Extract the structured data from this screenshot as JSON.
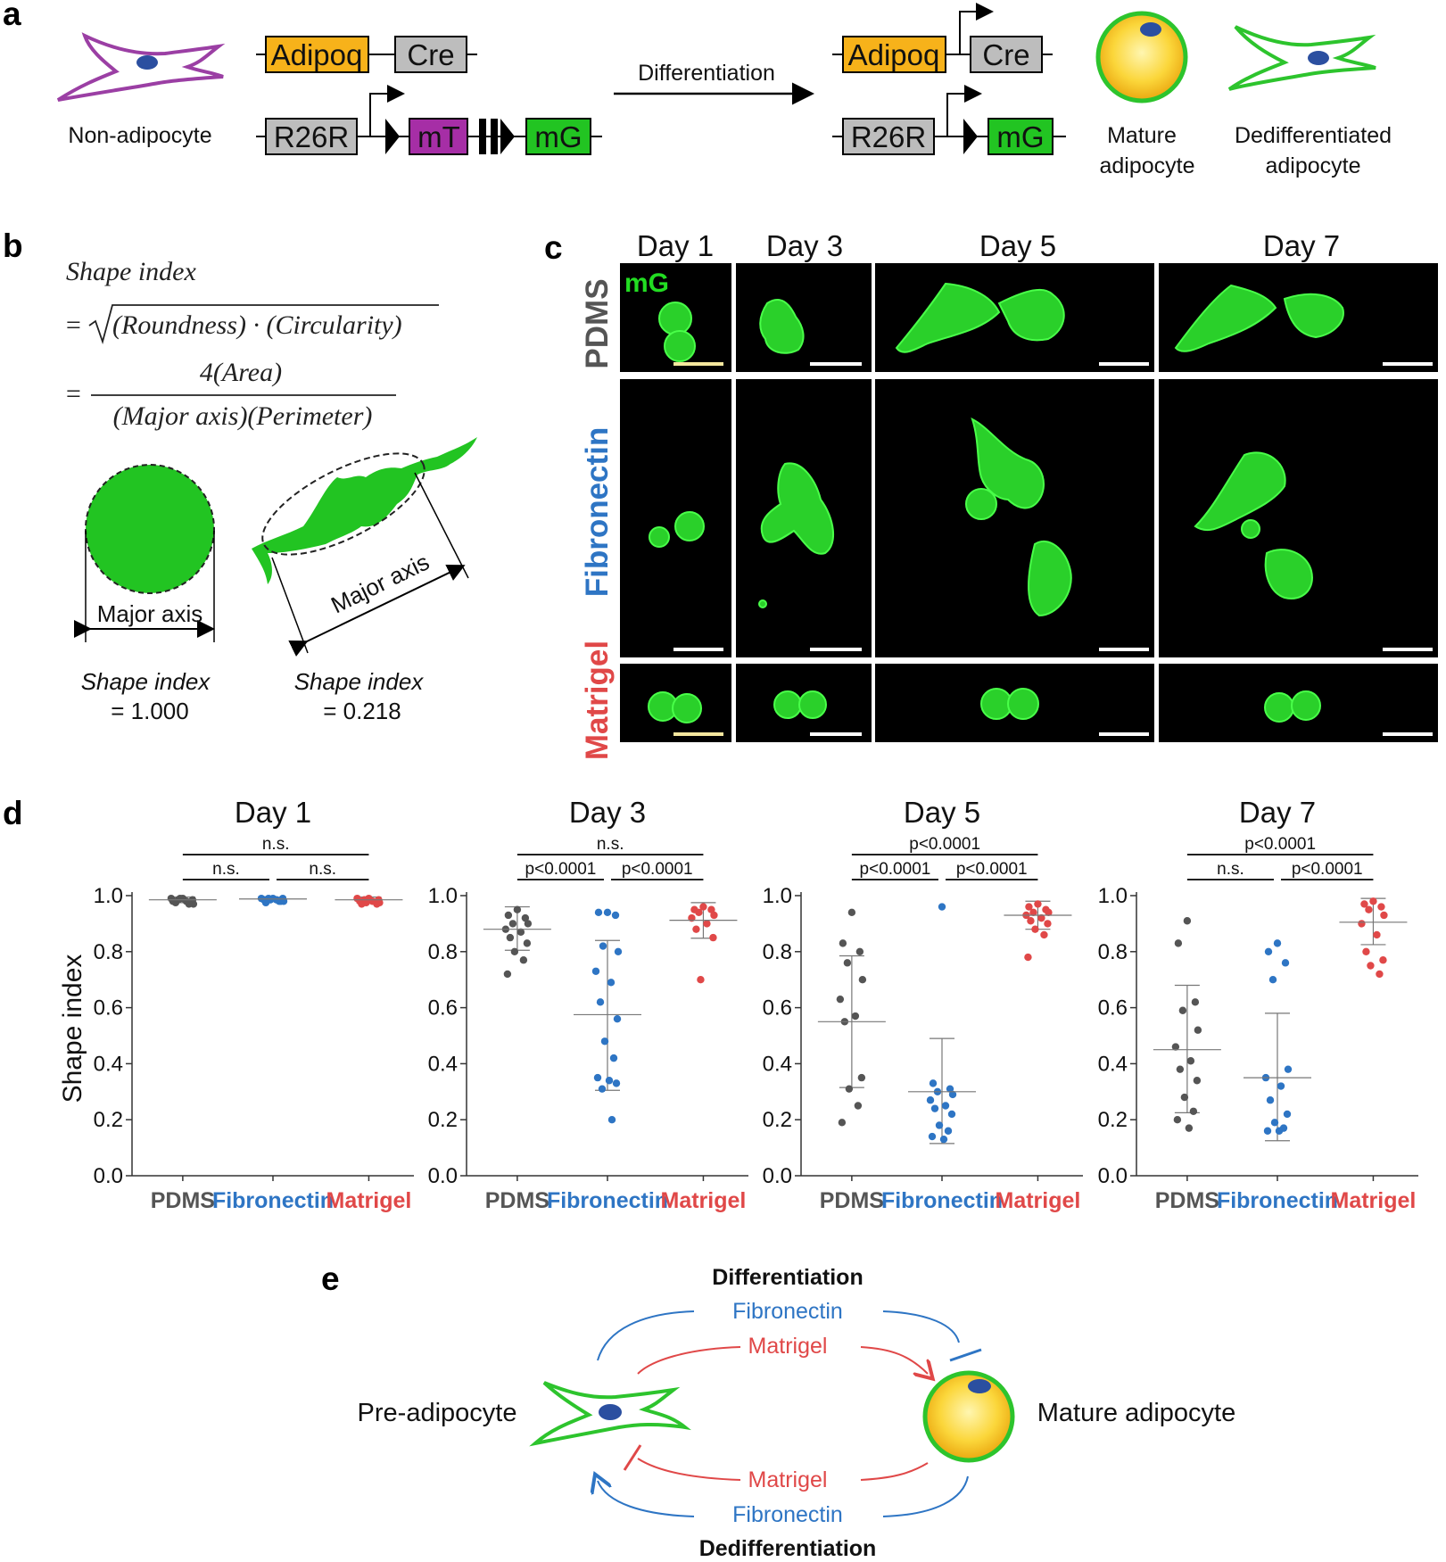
{
  "panels": {
    "a": "a",
    "b": "b",
    "c": "c",
    "d": "d",
    "e": "e"
  },
  "panel_a": {
    "non_adipocyte": "Non-adipocyte",
    "adipoq": "Adipoq",
    "cre": "Cre",
    "r26r": "R26R",
    "mT": "mT",
    "mG": "mG",
    "differentiation": "Differentiation",
    "mature_line1": "Mature",
    "mature_line2": "adipocyte",
    "dediff_line1": "Dedifferentiated",
    "dediff_line2": "adipocyte",
    "colors": {
      "adipoq": "#f7b21a",
      "cre": "#bdbdbd",
      "mT": "#a62ea6",
      "mG": "#22c422",
      "cell_purple": "#9b3fa4",
      "cell_green": "#2dc42d",
      "nucleus": "#2b4fa0"
    }
  },
  "panel_b": {
    "formula_title": "Shape index",
    "formula_line1": "(Roundness) · (Circularity)",
    "formula_num": "4(Area)",
    "formula_den": "(Major axis)(Perimeter)",
    "major_axis": "Major axis",
    "circle_label": "Shape index",
    "circle_value": "= 1.000",
    "cell_label": "Shape index",
    "cell_value": "= 0.218"
  },
  "panel_c": {
    "days": [
      "Day 1",
      "Day 3",
      "Day 5",
      "Day 7"
    ],
    "rows": [
      "PDMS",
      "Fibronectin",
      "Matrigel"
    ],
    "channel": "mG"
  },
  "panel_e": {
    "differentiation": "Differentiation",
    "dedifferentiation": "Dedifferentiation",
    "fibronectin_top": "Fibronectin",
    "matrigel_top": "Matrigel",
    "matrigel_bottom": "Matrigel",
    "fibronectin_bottom": "Fibronectin",
    "pre_adipocyte": "Pre-adipocyte",
    "mature_adipocyte": "Mature adipocyte"
  },
  "chart_data": {
    "type": "scatter",
    "ylabel": "Shape index",
    "ylim": [
      0,
      1
    ],
    "yticks": [
      "0.0",
      "0.2",
      "0.4",
      "0.6",
      "0.8",
      "1.0"
    ],
    "categories": [
      "PDMS",
      "Fibronectin",
      "Matrigel"
    ],
    "category_colors": [
      "#555555",
      "#2e75c4",
      "#e04848"
    ],
    "panels": [
      {
        "title": "Day 1",
        "comparisons": [
          {
            "label": "n.s."
          },
          {
            "label": "n.s."
          },
          {
            "label": "n.s."
          }
        ],
        "series": [
          {
            "mean": 0.985,
            "sd_low": 0.975,
            "sd_high": 0.995,
            "values": [
              0.99,
              0.98,
              0.975,
              0.985,
              0.97,
              0.99,
              0.98,
              0.975,
              0.985,
              0.99,
              0.97,
              0.98
            ]
          },
          {
            "mean": 0.988,
            "sd_low": 0.982,
            "sd_high": 0.994,
            "values": [
              0.99,
              0.985,
              0.98,
              0.99,
              0.98,
              0.99,
              0.985,
              0.975,
              0.99,
              0.985,
              0.98
            ]
          },
          {
            "mean": 0.985,
            "sd_low": 0.975,
            "sd_high": 0.995,
            "values": [
              0.99,
              0.98,
              0.97,
              0.985,
              0.975,
              0.99,
              0.98,
              0.97,
              0.985,
              0.975
            ]
          }
        ]
      },
      {
        "title": "Day 3",
        "comparisons": [
          {
            "label": "n.s."
          },
          {
            "label": "p<0.0001"
          },
          {
            "label": "p<0.0001"
          }
        ],
        "series": [
          {
            "mean": 0.88,
            "sd_low": 0.805,
            "sd_high": 0.96,
            "values": [
              0.95,
              0.93,
              0.92,
              0.9,
              0.9,
              0.88,
              0.87,
              0.85,
              0.83,
              0.8,
              0.77,
              0.72
            ]
          },
          {
            "mean": 0.575,
            "sd_low": 0.305,
            "sd_high": 0.84,
            "values": [
              0.94,
              0.94,
              0.93,
              0.82,
              0.8,
              0.73,
              0.69,
              0.62,
              0.56,
              0.48,
              0.42,
              0.35,
              0.34,
              0.33,
              0.31,
              0.2
            ]
          },
          {
            "mean": 0.912,
            "sd_low": 0.848,
            "sd_high": 0.975,
            "values": [
              0.96,
              0.95,
              0.95,
              0.94,
              0.93,
              0.92,
              0.9,
              0.88,
              0.85,
              0.7
            ]
          }
        ]
      },
      {
        "title": "Day 5",
        "comparisons": [
          {
            "label": "p<0.0001"
          },
          {
            "label": "p<0.0001"
          },
          {
            "label": "p<0.0001"
          }
        ],
        "series": [
          {
            "mean": 0.55,
            "sd_low": 0.315,
            "sd_high": 0.785,
            "values": [
              0.94,
              0.83,
              0.8,
              0.76,
              0.7,
              0.63,
              0.57,
              0.55,
              0.35,
              0.31,
              0.25,
              0.19
            ]
          },
          {
            "mean": 0.3,
            "sd_low": 0.115,
            "sd_high": 0.49,
            "values": [
              0.96,
              0.33,
              0.31,
              0.3,
              0.29,
              0.27,
              0.25,
              0.24,
              0.22,
              0.18,
              0.16,
              0.14,
              0.13
            ]
          },
          {
            "mean": 0.93,
            "sd_low": 0.88,
            "sd_high": 0.98,
            "values": [
              0.97,
              0.96,
              0.95,
              0.94,
              0.94,
              0.93,
              0.92,
              0.91,
              0.9,
              0.88,
              0.86,
              0.78
            ]
          }
        ]
      },
      {
        "title": "Day 7",
        "comparisons": [
          {
            "label": "p<0.0001"
          },
          {
            "label": "n.s."
          },
          {
            "label": "p<0.0001"
          }
        ],
        "series": [
          {
            "mean": 0.45,
            "sd_low": 0.225,
            "sd_high": 0.68,
            "values": [
              0.91,
              0.83,
              0.62,
              0.59,
              0.52,
              0.46,
              0.41,
              0.38,
              0.34,
              0.28,
              0.23,
              0.2,
              0.17
            ]
          },
          {
            "mean": 0.35,
            "sd_low": 0.125,
            "sd_high": 0.58,
            "values": [
              0.83,
              0.8,
              0.76,
              0.7,
              0.38,
              0.35,
              0.32,
              0.27,
              0.22,
              0.19,
              0.17,
              0.16,
              0.16
            ]
          },
          {
            "mean": 0.905,
            "sd_low": 0.825,
            "sd_high": 0.99,
            "values": [
              0.98,
              0.97,
              0.96,
              0.95,
              0.93,
              0.9,
              0.86,
              0.8,
              0.77,
              0.75,
              0.72
            ]
          }
        ]
      }
    ]
  }
}
